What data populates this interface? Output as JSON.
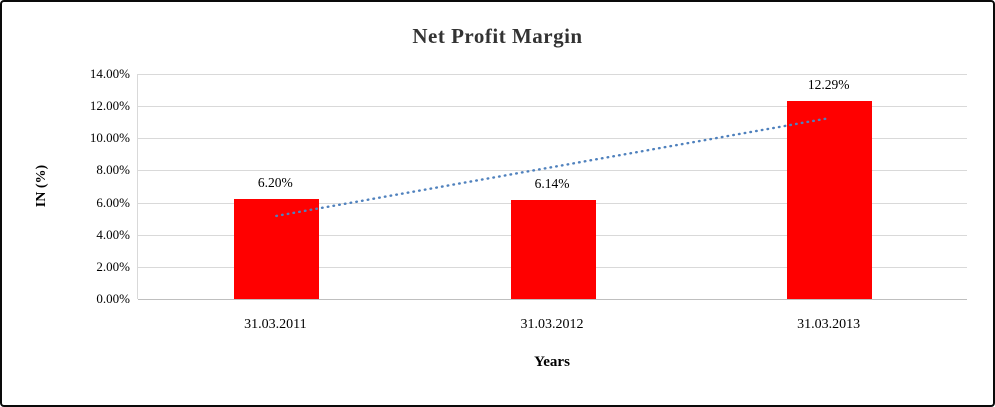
{
  "chart_data": {
    "type": "bar",
    "title": "Net Profit Margin",
    "xlabel": "Years",
    "ylabel": "IN (%)",
    "categories": [
      "31.03.2011",
      "31.03.2012",
      "31.03.2013"
    ],
    "values": [
      6.2,
      6.14,
      12.29
    ],
    "data_labels": [
      "6.20%",
      "6.14%",
      "12.29%"
    ],
    "ylim": [
      0,
      14
    ],
    "ytick_step": 2,
    "ytick_labels": [
      "0.00%",
      "2.00%",
      "4.00%",
      "6.00%",
      "8.00%",
      "10.00%",
      "12.00%",
      "14.00%"
    ],
    "grid": true,
    "legend": "none",
    "bar_color": "#ff0000",
    "gridline_color": "#d9d9d9",
    "trendline": {
      "type": "linear",
      "style": "dotted",
      "color": "#4f81bd",
      "start_value": 5.17,
      "end_value": 11.26
    }
  }
}
